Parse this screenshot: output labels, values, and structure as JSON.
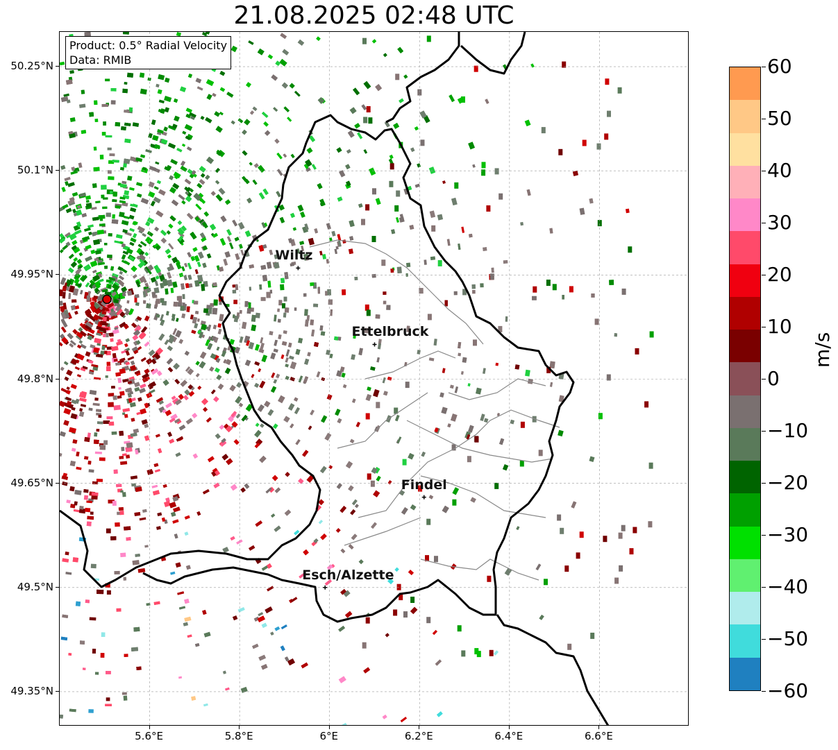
{
  "title": "21.08.2025 02:48 UTC",
  "info": {
    "product": "Product: 0.5° Radial Velocity",
    "source": "Data: RMIB"
  },
  "axes": {
    "lat_ticks": [
      "50.25°N",
      "50.1°N",
      "49.95°N",
      "49.8°N",
      "49.65°N",
      "49.5°N",
      "49.35°N"
    ],
    "lon_ticks": [
      "5.6°E",
      "5.8°E",
      "6°E",
      "6.2°E",
      "6.4°E",
      "6.6°E"
    ],
    "lat_range": [
      49.3,
      50.3
    ],
    "lon_range": [
      5.4,
      6.8
    ]
  },
  "cities": [
    {
      "name": "Wiltz",
      "lon": 5.93,
      "lat": 49.96
    },
    {
      "name": "Ettelbruck",
      "lon": 6.1,
      "lat": 49.85
    },
    {
      "name": "Findel",
      "lon": 6.21,
      "lat": 49.63
    },
    {
      "name": "Esch/Alzette",
      "lon": 5.99,
      "lat": 49.5
    }
  ],
  "radar": {
    "lon": 5.505,
    "lat": 49.915
  },
  "colorbar": {
    "unit": "m/s",
    "min": -60,
    "max": 60,
    "ticks": [
      "60",
      "50",
      "40",
      "30",
      "20",
      "10",
      "0",
      "−10",
      "−20",
      "−30",
      "−40",
      "−50",
      "−60"
    ],
    "colors": [
      "#ff9a50",
      "#ffc886",
      "#ffe0a0",
      "#ffb0b8",
      "#ff88c8",
      "#ff4a6a",
      "#f00010",
      "#b00000",
      "#7a0000",
      "#8a5058",
      "#7a7070",
      "#5a7a5a",
      "#006400",
      "#00a000",
      "#00e000",
      "#60f070",
      "#b0ecec",
      "#40dcdc",
      "#1f80c0"
    ]
  }
}
